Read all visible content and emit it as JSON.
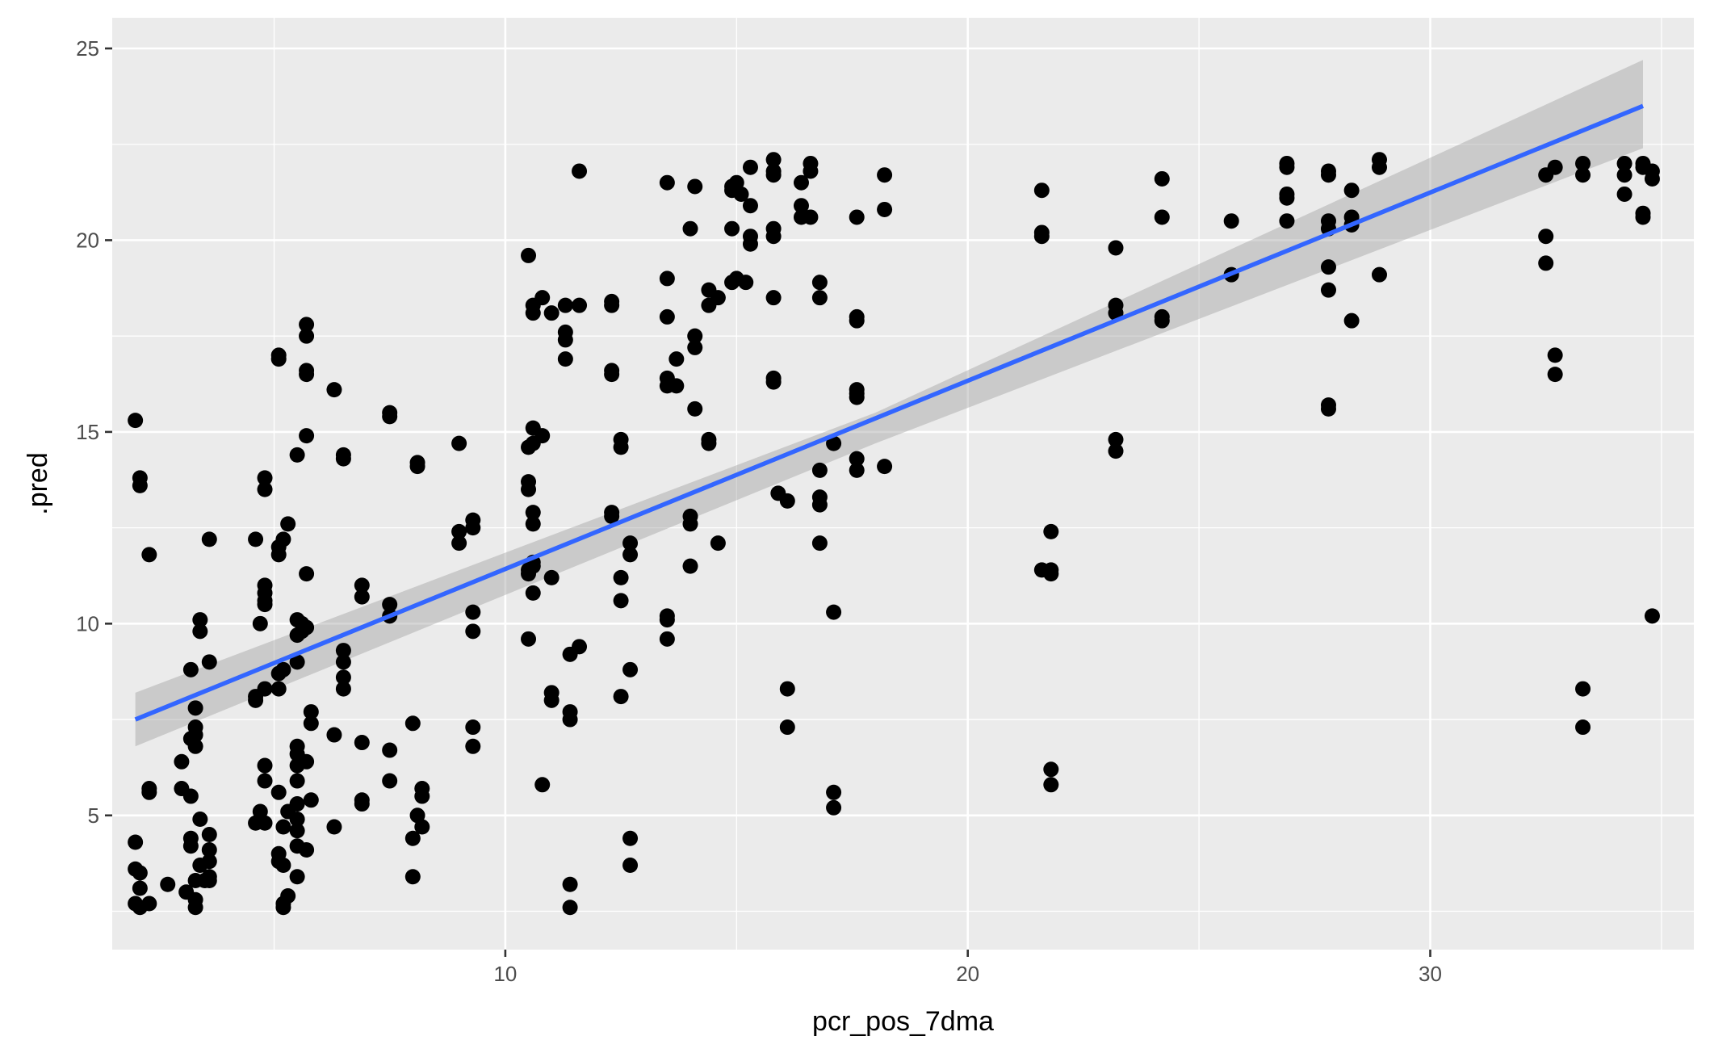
{
  "chart_data": {
    "type": "scatter",
    "title": "",
    "xlabel": "pcr_pos_7dma",
    "ylabel": ".pred",
    "xlim": [
      1.5,
      35.7
    ],
    "ylim": [
      1.5,
      25.8
    ],
    "x_ticks": [
      10,
      20,
      30
    ],
    "y_ticks": [
      5,
      10,
      15,
      20,
      25
    ],
    "grid": true,
    "legend": "none",
    "colors": {
      "points": "#000000",
      "fit_line": "#3366ff",
      "band": "#999999",
      "panel": "#ebebeb",
      "grid": "#ffffff"
    },
    "smooth": {
      "method": "lm",
      "line": [
        [
          2.0,
          7.5
        ],
        [
          34.6,
          23.5
        ]
      ],
      "ci_band": [
        [
          2.0,
          6.8,
          8.2
        ],
        [
          18.0,
          14.7,
          15.5
        ],
        [
          34.6,
          22.4,
          24.7
        ]
      ]
    },
    "points": [
      [
        2.0,
        15.3
      ],
      [
        2.1,
        13.8
      ],
      [
        2.1,
        13.6
      ],
      [
        2.3,
        11.8
      ],
      [
        2.0,
        4.3
      ],
      [
        2.0,
        3.6
      ],
      [
        2.1,
        3.5
      ],
      [
        2.1,
        3.1
      ],
      [
        2.0,
        2.7
      ],
      [
        2.1,
        2.6
      ],
      [
        2.3,
        2.7
      ],
      [
        2.3,
        5.6
      ],
      [
        2.3,
        5.7
      ],
      [
        2.7,
        3.2
      ],
      [
        3.0,
        6.4
      ],
      [
        3.0,
        5.7
      ],
      [
        3.1,
        3.0
      ],
      [
        3.2,
        8.8
      ],
      [
        3.2,
        7.0
      ],
      [
        3.2,
        5.5
      ],
      [
        3.2,
        4.4
      ],
      [
        3.2,
        4.2
      ],
      [
        3.3,
        3.3
      ],
      [
        3.3,
        2.8
      ],
      [
        3.3,
        2.6
      ],
      [
        3.3,
        7.8
      ],
      [
        3.3,
        7.3
      ],
      [
        3.3,
        7.1
      ],
      [
        3.3,
        6.8
      ],
      [
        3.4,
        10.1
      ],
      [
        3.4,
        9.8
      ],
      [
        3.4,
        4.9
      ],
      [
        3.4,
        3.7
      ],
      [
        3.5,
        3.3
      ],
      [
        3.6,
        12.2
      ],
      [
        3.6,
        9.0
      ],
      [
        3.6,
        4.5
      ],
      [
        3.6,
        4.1
      ],
      [
        3.6,
        3.8
      ],
      [
        3.6,
        3.4
      ],
      [
        3.6,
        3.3
      ],
      [
        4.6,
        12.2
      ],
      [
        4.6,
        8.1
      ],
      [
        4.6,
        8.0
      ],
      [
        4.6,
        4.8
      ],
      [
        4.7,
        10.0
      ],
      [
        4.7,
        5.1
      ],
      [
        4.8,
        13.8
      ],
      [
        4.8,
        13.5
      ],
      [
        4.8,
        11.0
      ],
      [
        4.8,
        10.8
      ],
      [
        4.8,
        10.6
      ],
      [
        4.8,
        10.5
      ],
      [
        4.8,
        8.3
      ],
      [
        4.8,
        6.3
      ],
      [
        4.8,
        5.9
      ],
      [
        4.8,
        4.8
      ],
      [
        5.1,
        17.0
      ],
      [
        5.1,
        16.9
      ],
      [
        5.1,
        12.0
      ],
      [
        5.1,
        11.8
      ],
      [
        5.1,
        8.7
      ],
      [
        5.1,
        8.3
      ],
      [
        5.1,
        5.6
      ],
      [
        5.1,
        4.0
      ],
      [
        5.1,
        3.8
      ],
      [
        5.2,
        3.7
      ],
      [
        5.2,
        12.2
      ],
      [
        5.2,
        8.8
      ],
      [
        5.2,
        4.7
      ],
      [
        5.2,
        2.7
      ],
      [
        5.2,
        2.6
      ],
      [
        5.3,
        12.6
      ],
      [
        5.3,
        5.1
      ],
      [
        5.3,
        2.9
      ],
      [
        5.5,
        14.4
      ],
      [
        5.5,
        10.1
      ],
      [
        5.5,
        9.7
      ],
      [
        5.5,
        9.0
      ],
      [
        5.5,
        6.8
      ],
      [
        5.5,
        6.6
      ],
      [
        5.5,
        6.3
      ],
      [
        5.5,
        5.9
      ],
      [
        5.5,
        5.3
      ],
      [
        5.5,
        4.9
      ],
      [
        5.5,
        4.6
      ],
      [
        5.5,
        4.2
      ],
      [
        5.5,
        3.4
      ],
      [
        5.6,
        10.0
      ],
      [
        5.6,
        9.8
      ],
      [
        5.7,
        17.8
      ],
      [
        5.7,
        17.5
      ],
      [
        5.7,
        16.6
      ],
      [
        5.7,
        16.5
      ],
      [
        5.7,
        14.9
      ],
      [
        5.7,
        11.3
      ],
      [
        5.7,
        9.9
      ],
      [
        5.7,
        6.4
      ],
      [
        5.7,
        4.1
      ],
      [
        5.8,
        7.7
      ],
      [
        5.8,
        7.4
      ],
      [
        5.8,
        5.4
      ],
      [
        6.3,
        16.1
      ],
      [
        6.3,
        7.1
      ],
      [
        6.3,
        4.7
      ],
      [
        6.5,
        14.4
      ],
      [
        6.5,
        14.3
      ],
      [
        6.5,
        9.3
      ],
      [
        6.5,
        9.0
      ],
      [
        6.5,
        8.6
      ],
      [
        6.5,
        8.3
      ],
      [
        6.9,
        11.0
      ],
      [
        6.9,
        10.7
      ],
      [
        6.9,
        6.9
      ],
      [
        6.9,
        5.4
      ],
      [
        6.9,
        5.3
      ],
      [
        7.5,
        15.5
      ],
      [
        7.5,
        15.4
      ],
      [
        7.5,
        10.5
      ],
      [
        7.5,
        10.2
      ],
      [
        7.5,
        6.7
      ],
      [
        7.5,
        5.9
      ],
      [
        8.0,
        7.4
      ],
      [
        8.0,
        4.4
      ],
      [
        8.0,
        3.4
      ],
      [
        8.1,
        14.2
      ],
      [
        8.1,
        14.1
      ],
      [
        8.1,
        5.0
      ],
      [
        8.2,
        5.7
      ],
      [
        8.2,
        5.5
      ],
      [
        8.2,
        4.7
      ],
      [
        9.0,
        14.7
      ],
      [
        9.0,
        12.4
      ],
      [
        9.0,
        12.1
      ],
      [
        9.3,
        12.7
      ],
      [
        9.3,
        12.5
      ],
      [
        9.3,
        10.3
      ],
      [
        9.3,
        9.8
      ],
      [
        9.3,
        7.3
      ],
      [
        9.3,
        6.8
      ],
      [
        10.5,
        19.6
      ],
      [
        10.5,
        13.7
      ],
      [
        10.5,
        13.5
      ],
      [
        10.5,
        11.4
      ],
      [
        10.5,
        11.3
      ],
      [
        10.5,
        9.6
      ],
      [
        10.5,
        14.6
      ],
      [
        10.6,
        18.3
      ],
      [
        10.6,
        18.1
      ],
      [
        10.6,
        15.1
      ],
      [
        10.6,
        14.7
      ],
      [
        10.6,
        12.9
      ],
      [
        10.6,
        12.6
      ],
      [
        10.6,
        11.6
      ],
      [
        10.6,
        11.5
      ],
      [
        10.6,
        10.8
      ],
      [
        10.8,
        18.5
      ],
      [
        10.8,
        14.9
      ],
      [
        10.8,
        5.8
      ],
      [
        11.0,
        18.1
      ],
      [
        11.0,
        11.2
      ],
      [
        11.0,
        8.2
      ],
      [
        11.0,
        8.0
      ],
      [
        11.3,
        18.3
      ],
      [
        11.3,
        17.6
      ],
      [
        11.3,
        17.4
      ],
      [
        11.3,
        16.9
      ],
      [
        11.4,
        9.2
      ],
      [
        11.4,
        7.7
      ],
      [
        11.4,
        7.5
      ],
      [
        11.4,
        3.2
      ],
      [
        11.4,
        2.6
      ],
      [
        11.6,
        21.8
      ],
      [
        11.6,
        18.3
      ],
      [
        11.6,
        9.4
      ],
      [
        12.3,
        18.4
      ],
      [
        12.3,
        18.3
      ],
      [
        12.3,
        16.6
      ],
      [
        12.3,
        16.5
      ],
      [
        12.3,
        12.9
      ],
      [
        12.3,
        12.8
      ],
      [
        12.5,
        14.8
      ],
      [
        12.5,
        14.6
      ],
      [
        12.5,
        11.2
      ],
      [
        12.5,
        10.6
      ],
      [
        12.5,
        8.1
      ],
      [
        12.7,
        12.1
      ],
      [
        12.7,
        11.8
      ],
      [
        12.7,
        8.8
      ],
      [
        12.7,
        4.4
      ],
      [
        12.7,
        3.7
      ],
      [
        13.5,
        21.5
      ],
      [
        13.5,
        19.0
      ],
      [
        13.5,
        18.0
      ],
      [
        13.5,
        16.4
      ],
      [
        13.5,
        16.2
      ],
      [
        13.5,
        10.2
      ],
      [
        13.5,
        10.1
      ],
      [
        13.5,
        9.6
      ],
      [
        13.7,
        16.9
      ],
      [
        13.7,
        16.2
      ],
      [
        14.0,
        20.3
      ],
      [
        14.0,
        12.8
      ],
      [
        14.0,
        12.6
      ],
      [
        14.0,
        11.5
      ],
      [
        14.1,
        21.4
      ],
      [
        14.1,
        17.5
      ],
      [
        14.1,
        17.2
      ],
      [
        14.1,
        15.6
      ],
      [
        14.4,
        18.7
      ],
      [
        14.4,
        18.3
      ],
      [
        14.4,
        14.8
      ],
      [
        14.4,
        14.7
      ],
      [
        14.6,
        18.5
      ],
      [
        14.6,
        12.1
      ],
      [
        14.9,
        21.4
      ],
      [
        14.9,
        21.3
      ],
      [
        14.9,
        20.3
      ],
      [
        14.9,
        18.9
      ],
      [
        15.0,
        21.5
      ],
      [
        15.0,
        19.0
      ],
      [
        15.1,
        21.2
      ],
      [
        15.2,
        18.9
      ],
      [
        15.3,
        21.9
      ],
      [
        15.3,
        20.9
      ],
      [
        15.3,
        20.1
      ],
      [
        15.3,
        19.9
      ],
      [
        15.8,
        22.1
      ],
      [
        15.8,
        21.8
      ],
      [
        15.8,
        21.7
      ],
      [
        15.8,
        20.3
      ],
      [
        15.8,
        20.1
      ],
      [
        15.8,
        18.5
      ],
      [
        15.8,
        16.4
      ],
      [
        15.8,
        16.3
      ],
      [
        15.9,
        13.4
      ],
      [
        16.1,
        13.2
      ],
      [
        16.1,
        8.3
      ],
      [
        16.1,
        7.3
      ],
      [
        16.4,
        21.5
      ],
      [
        16.4,
        20.9
      ],
      [
        16.4,
        20.6
      ],
      [
        16.6,
        22.0
      ],
      [
        16.6,
        21.8
      ],
      [
        16.6,
        20.6
      ],
      [
        16.8,
        18.9
      ],
      [
        16.8,
        18.5
      ],
      [
        16.8,
        14.0
      ],
      [
        16.8,
        13.3
      ],
      [
        16.8,
        13.1
      ],
      [
        16.8,
        12.1
      ],
      [
        17.1,
        14.7
      ],
      [
        17.1,
        10.3
      ],
      [
        17.1,
        5.6
      ],
      [
        17.1,
        5.2
      ],
      [
        17.6,
        20.6
      ],
      [
        17.6,
        18.0
      ],
      [
        17.6,
        17.9
      ],
      [
        17.6,
        16.1
      ],
      [
        17.6,
        16.0
      ],
      [
        17.6,
        15.9
      ],
      [
        17.6,
        14.3
      ],
      [
        17.6,
        14.0
      ],
      [
        18.2,
        21.7
      ],
      [
        18.2,
        20.8
      ],
      [
        18.2,
        14.1
      ],
      [
        21.6,
        21.3
      ],
      [
        21.6,
        20.2
      ],
      [
        21.6,
        20.1
      ],
      [
        21.6,
        11.4
      ],
      [
        21.8,
        12.4
      ],
      [
        21.8,
        11.4
      ],
      [
        21.8,
        11.3
      ],
      [
        21.8,
        6.2
      ],
      [
        21.8,
        5.8
      ],
      [
        23.2,
        19.8
      ],
      [
        23.2,
        18.3
      ],
      [
        23.2,
        18.1
      ],
      [
        23.2,
        14.8
      ],
      [
        23.2,
        14.5
      ],
      [
        24.2,
        21.6
      ],
      [
        24.2,
        20.6
      ],
      [
        24.2,
        18.0
      ],
      [
        24.2,
        17.9
      ],
      [
        25.7,
        20.5
      ],
      [
        25.7,
        19.1
      ],
      [
        26.9,
        22.0
      ],
      [
        26.9,
        21.9
      ],
      [
        26.9,
        21.2
      ],
      [
        26.9,
        21.1
      ],
      [
        26.9,
        20.5
      ],
      [
        27.8,
        21.8
      ],
      [
        27.8,
        21.7
      ],
      [
        27.8,
        20.5
      ],
      [
        27.8,
        20.3
      ],
      [
        27.8,
        19.3
      ],
      [
        27.8,
        18.7
      ],
      [
        27.8,
        15.7
      ],
      [
        27.8,
        15.6
      ],
      [
        28.3,
        21.3
      ],
      [
        28.3,
        20.6
      ],
      [
        28.3,
        20.4
      ],
      [
        28.3,
        17.9
      ],
      [
        28.9,
        22.1
      ],
      [
        28.9,
        21.9
      ],
      [
        28.9,
        19.1
      ],
      [
        32.5,
        21.7
      ],
      [
        32.5,
        20.1
      ],
      [
        32.5,
        19.4
      ],
      [
        32.7,
        21.9
      ],
      [
        32.7,
        17.0
      ],
      [
        32.7,
        16.5
      ],
      [
        33.3,
        22.0
      ],
      [
        33.3,
        21.7
      ],
      [
        33.3,
        8.3
      ],
      [
        33.3,
        7.3
      ],
      [
        34.2,
        22.0
      ],
      [
        34.2,
        21.7
      ],
      [
        34.2,
        21.2
      ],
      [
        34.6,
        22.0
      ],
      [
        34.6,
        21.9
      ],
      [
        34.6,
        20.7
      ],
      [
        34.6,
        20.6
      ],
      [
        34.8,
        21.8
      ],
      [
        34.8,
        21.6
      ],
      [
        34.8,
        10.2
      ]
    ]
  }
}
